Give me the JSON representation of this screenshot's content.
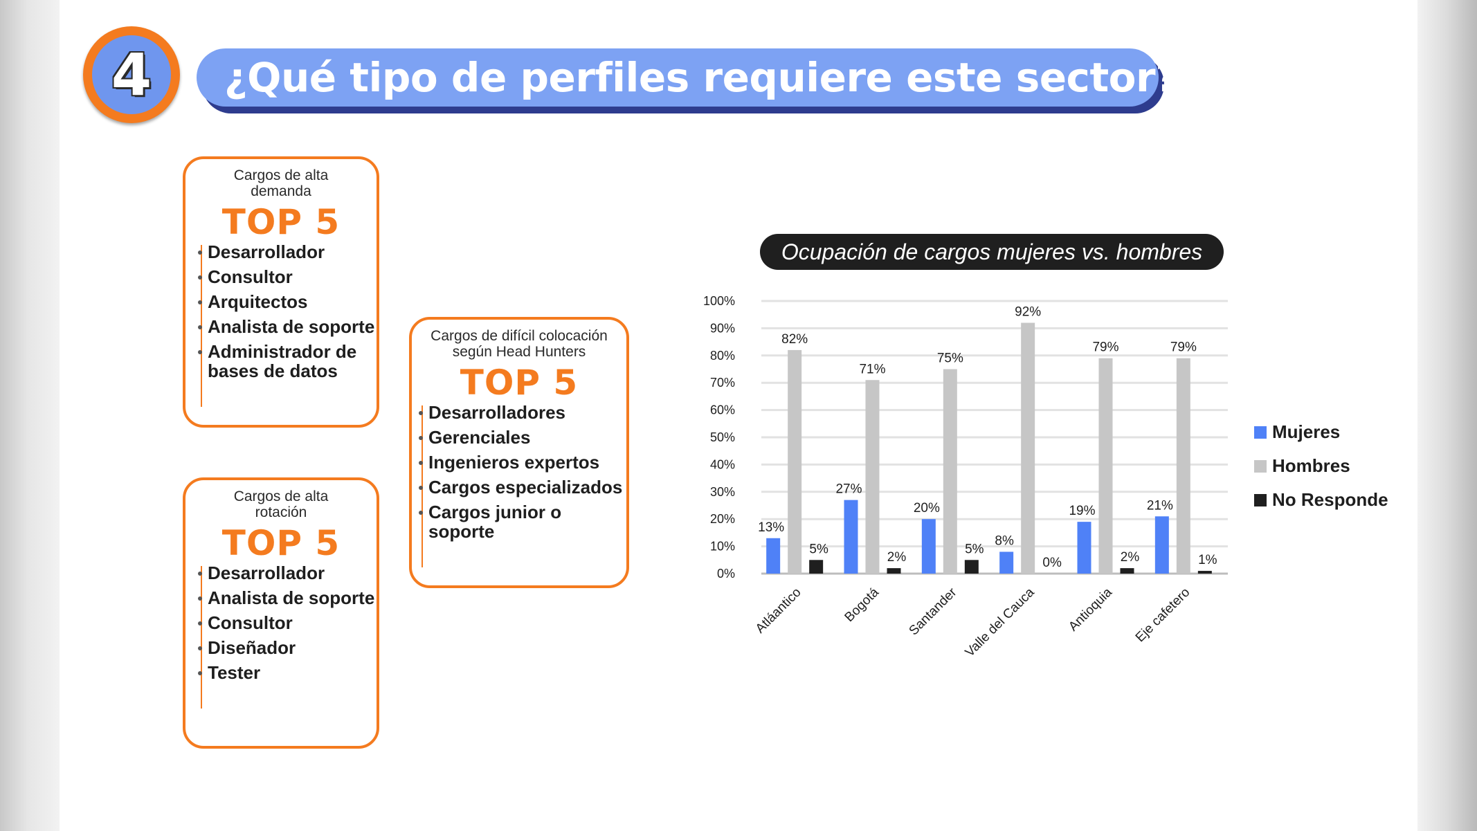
{
  "header": {
    "number": "4",
    "title": "¿Qué tipo de perfiles requiere este sector?"
  },
  "boxes": [
    {
      "heading": [
        "Cargos de alta",
        "demanda"
      ],
      "top_label": "TOP 5",
      "items": [
        "Desarrollador",
        "Consultor",
        "Arquitectos",
        "Analista de soporte",
        "Administrador de bases de datos"
      ]
    },
    {
      "heading": [
        "Cargos de alta",
        "rotación"
      ],
      "top_label": "TOP 5",
      "items": [
        "Desarrollador",
        "Analista de soporte",
        "Consultor",
        "Diseñador",
        "Tester"
      ]
    },
    {
      "heading": [
        "Cargos de difícil colocación",
        "según Head Hunters"
      ],
      "top_label": "TOP 5",
      "items": [
        "Desarrolladores",
        "Gerenciales",
        "Ingenieros expertos",
        "Cargos especializados",
        "Cargos junior o soporte"
      ]
    }
  ],
  "colors": {
    "orange": "#f47b1f",
    "mujeres": "#4f81f7",
    "hombres": "#c6c6c6",
    "no_responde": "#1f1f1f"
  },
  "chart_data": {
    "type": "bar",
    "title": "Ocupación de cargos mujeres vs. hombres",
    "categories": [
      "Atláantico",
      "Bogotá",
      "Santander",
      "Valle del Cauca",
      "Antioquia",
      "Eje cafetero"
    ],
    "series": [
      {
        "name": "Mujeres",
        "values": [
          13,
          27,
          20,
          8,
          19,
          21
        ],
        "labels": [
          "13%",
          "27%",
          "20%",
          "8%",
          "19%",
          "21%"
        ]
      },
      {
        "name": "Hombres",
        "values": [
          82,
          71,
          75,
          92,
          79,
          79
        ],
        "labels": [
          "82%",
          "71%",
          "75%",
          "92%",
          "79%",
          "79%"
        ]
      },
      {
        "name": "No Responde",
        "values": [
          5,
          2,
          5,
          0,
          2,
          1
        ],
        "labels": [
          "5%",
          "2%",
          "5%",
          "0%",
          "2%",
          "1%"
        ]
      }
    ],
    "ylim": [
      0,
      100
    ],
    "yticks": [
      "0%",
      "10%",
      "20%",
      "30%",
      "40%",
      "50%",
      "60%",
      "70%",
      "80%",
      "90%",
      "100%"
    ],
    "grid": true,
    "legend_position": "right"
  }
}
